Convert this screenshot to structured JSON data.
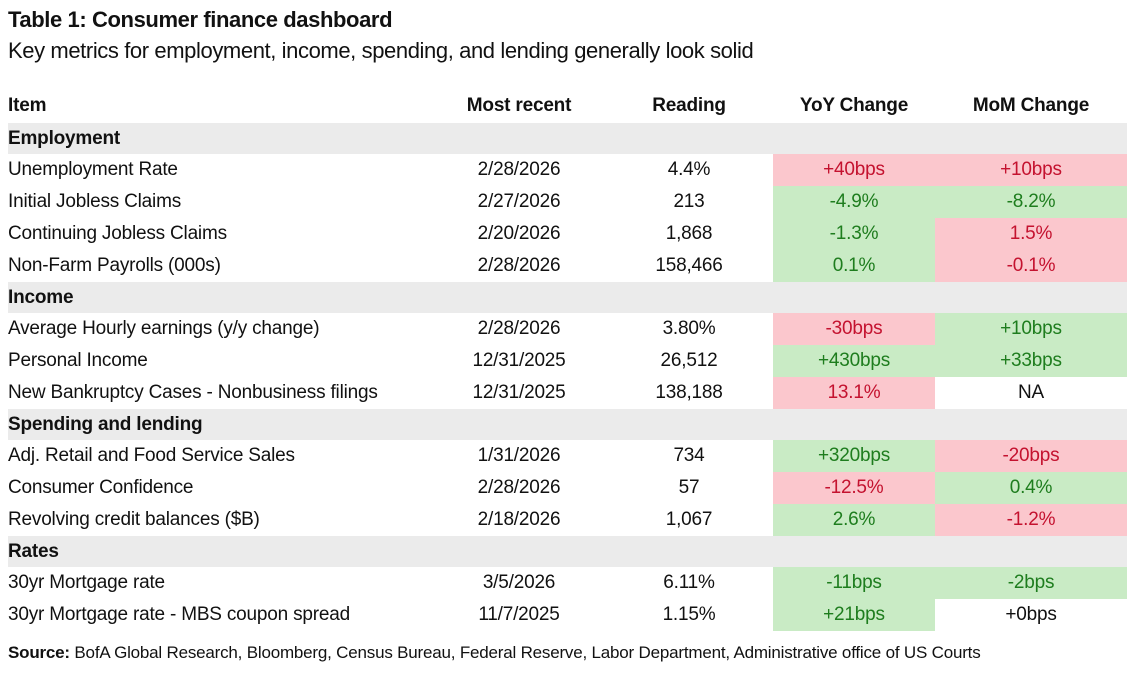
{
  "colors": {
    "pink_bg": "#FBC7CD",
    "green_bg": "#C9EBC5",
    "red_text": "#C4122F",
    "green_text": "#1E7D1E",
    "section_bg": "#EBEBEB",
    "text": "#111111"
  },
  "chart_data": {
    "type": "table",
    "title": "Table 1: Consumer finance dashboard",
    "subtitle": "Key metrics for employment, income, spending, and lending generally look solid",
    "columns": [
      "Item",
      "Most recent",
      "Reading",
      "YoY Change",
      "MoM Change"
    ],
    "sections": [
      {
        "name": "Employment",
        "rows": [
          {
            "item": "Unemployment Rate",
            "most_recent": "2/28/2026",
            "reading": "4.4%",
            "yoy": {
              "value": "+40bps",
              "sentiment": "neg"
            },
            "mom": {
              "value": "+10bps",
              "sentiment": "neg"
            }
          },
          {
            "item": "Initial Jobless Claims",
            "most_recent": "2/27/2026",
            "reading": "213",
            "yoy": {
              "value": "-4.9%",
              "sentiment": "pos"
            },
            "mom": {
              "value": "-8.2%",
              "sentiment": "pos"
            }
          },
          {
            "item": "Continuing Jobless Claims",
            "most_recent": "2/20/2026",
            "reading": "1,868",
            "yoy": {
              "value": "-1.3%",
              "sentiment": "pos"
            },
            "mom": {
              "value": "1.5%",
              "sentiment": "neg"
            }
          },
          {
            "item": "Non-Farm Payrolls (000s)",
            "most_recent": "2/28/2026",
            "reading": "158,466",
            "yoy": {
              "value": "0.1%",
              "sentiment": "pos"
            },
            "mom": {
              "value": "-0.1%",
              "sentiment": "neg"
            }
          }
        ]
      },
      {
        "name": "Income",
        "rows": [
          {
            "item": "Average Hourly earnings (y/y change)",
            "most_recent": "2/28/2026",
            "reading": "3.80%",
            "yoy": {
              "value": "-30bps",
              "sentiment": "neg"
            },
            "mom": {
              "value": "+10bps",
              "sentiment": "pos"
            }
          },
          {
            "item": "Personal Income",
            "most_recent": "12/31/2025",
            "reading": "26,512",
            "yoy": {
              "value": "+430bps",
              "sentiment": "pos"
            },
            "mom": {
              "value": "+33bps",
              "sentiment": "pos"
            }
          },
          {
            "item": "New Bankruptcy Cases - Nonbusiness filings",
            "most_recent": "12/31/2025",
            "reading": "138,188",
            "yoy": {
              "value": "13.1%",
              "sentiment": "neg"
            },
            "mom": {
              "value": "NA",
              "sentiment": "none"
            }
          }
        ]
      },
      {
        "name": "Spending and lending",
        "rows": [
          {
            "item": "Adj. Retail and Food Service Sales",
            "most_recent": "1/31/2026",
            "reading": "734",
            "yoy": {
              "value": "+320bps",
              "sentiment": "pos"
            },
            "mom": {
              "value": "-20bps",
              "sentiment": "neg"
            }
          },
          {
            "item": "Consumer Confidence",
            "most_recent": "2/28/2026",
            "reading": "57",
            "yoy": {
              "value": "-12.5%",
              "sentiment": "neg"
            },
            "mom": {
              "value": "0.4%",
              "sentiment": "pos"
            }
          },
          {
            "item": "Revolving credit balances ($B)",
            "most_recent": "2/18/2026",
            "reading": "1,067",
            "yoy": {
              "value": "2.6%",
              "sentiment": "pos"
            },
            "mom": {
              "value": "-1.2%",
              "sentiment": "neg"
            }
          }
        ]
      },
      {
        "name": "Rates",
        "rows": [
          {
            "item": "30yr Mortgage rate",
            "most_recent": "3/5/2026",
            "reading": "6.11%",
            "yoy": {
              "value": "-11bps",
              "sentiment": "pos"
            },
            "mom": {
              "value": "-2bps",
              "sentiment": "pos"
            }
          },
          {
            "item": "30yr Mortgage rate - MBS coupon spread",
            "most_recent": "11/7/2025",
            "reading": "1.15%",
            "yoy": {
              "value": "+21bps",
              "sentiment": "pos"
            },
            "mom": {
              "value": "+0bps",
              "sentiment": "none"
            }
          }
        ]
      }
    ],
    "source": {
      "label": "Source:",
      "text": "BofA Global Research, Bloomberg, Census Bureau, Federal Reserve, Labor Department, Administrative office of US Courts"
    }
  }
}
